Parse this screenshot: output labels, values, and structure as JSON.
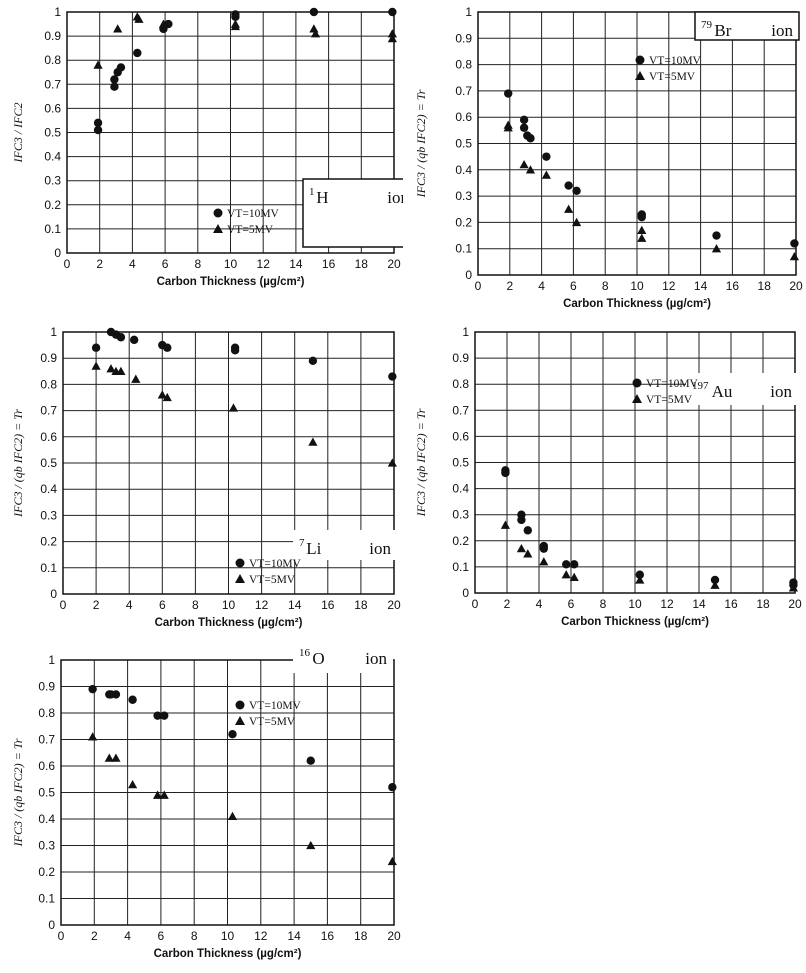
{
  "chart_data": [
    {
      "type": "scatter",
      "ion_mass": "1",
      "ion_symbol": "H",
      "ion_word": "ion",
      "ylabel": "IFC3 / IFC2",
      "xlabel": "Carbon Thickness (µg/cm²)",
      "xlim": [
        0,
        20
      ],
      "ylim": [
        0,
        1
      ],
      "xticks": [
        "0",
        "2",
        "4",
        "6",
        "8",
        "10",
        "12",
        "14",
        "16",
        "18",
        "20"
      ],
      "yticks": [
        "0",
        "0.1",
        "0.2",
        "0.3",
        "0.4",
        "0.5",
        "0.6",
        "0.7",
        "0.8",
        "0.9",
        "1"
      ],
      "grid": true,
      "legend_position": "right-middle",
      "series": [
        {
          "name": "VT=10MV",
          "marker": "circle",
          "x": [
            1.9,
            1.9,
            2.9,
            2.9,
            3.1,
            3.3,
            4.3,
            5.9,
            6.2,
            10.3,
            10.3,
            15.1,
            19.9
          ],
          "y": [
            0.54,
            0.51,
            0.72,
            0.69,
            0.75,
            0.77,
            0.83,
            0.93,
            0.95,
            0.98,
            0.99,
            1.0,
            1.0
          ]
        },
        {
          "name": "VT=5MV",
          "marker": "triangle",
          "x": [
            1.9,
            3.1,
            4.3,
            4.4,
            5.9,
            10.3,
            10.3,
            15.1,
            15.2,
            19.9,
            19.9
          ],
          "y": [
            0.78,
            0.93,
            0.98,
            0.97,
            0.95,
            0.94,
            0.95,
            0.93,
            0.91,
            0.91,
            0.89
          ]
        }
      ]
    },
    {
      "type": "scatter",
      "ion_mass": "79",
      "ion_symbol": "Br",
      "ion_word": "ion",
      "ylabel": "IFC3 / (qb IFC2) = Tr",
      "xlabel": "Carbon Thickness (µg/cm²)",
      "xlim": [
        0,
        20
      ],
      "ylim": [
        0,
        1
      ],
      "xticks": [
        "0",
        "2",
        "4",
        "6",
        "8",
        "10",
        "12",
        "14",
        "16",
        "18",
        "20"
      ],
      "yticks": [
        "0",
        "0.1",
        "0.2",
        "0.3",
        "0.4",
        "0.5",
        "0.6",
        "0.7",
        "0.8",
        "0.9",
        "1"
      ],
      "grid": true,
      "legend_position": "top-right",
      "series": [
        {
          "name": "VT=10MV",
          "marker": "circle",
          "x": [
            1.9,
            2.9,
            2.9,
            3.1,
            3.3,
            4.3,
            5.7,
            6.2,
            10.3,
            10.3,
            15.0,
            19.9
          ],
          "y": [
            0.69,
            0.59,
            0.56,
            0.53,
            0.52,
            0.45,
            0.34,
            0.32,
            0.23,
            0.22,
            0.15,
            0.12
          ]
        },
        {
          "name": "VT=5MV",
          "marker": "triangle",
          "x": [
            1.9,
            1.9,
            2.9,
            3.3,
            4.3,
            5.7,
            6.2,
            10.3,
            10.3,
            15.0,
            19.9
          ],
          "y": [
            0.57,
            0.56,
            0.42,
            0.4,
            0.38,
            0.25,
            0.2,
            0.17,
            0.14,
            0.1,
            0.07
          ]
        }
      ]
    },
    {
      "type": "scatter",
      "ion_mass": "7",
      "ion_symbol": "Li",
      "ion_word": "ion",
      "ylabel": "IFC3 / (qb IFC2) = Tr",
      "xlabel": "Carbon Thickness (µg/cm²)",
      "xlim": [
        0,
        20
      ],
      "ylim": [
        0,
        1
      ],
      "xticks": [
        "0",
        "2",
        "4",
        "6",
        "8",
        "10",
        "12",
        "14",
        "16",
        "18",
        "20"
      ],
      "yticks": [
        "0",
        "0.1",
        "0.2",
        "0.3",
        "0.4",
        "0.5",
        "0.6",
        "0.7",
        "0.8",
        "0.9",
        "1"
      ],
      "grid": true,
      "legend_position": "bottom-right",
      "series": [
        {
          "name": "VT=10MV",
          "marker": "circle",
          "x": [
            2.0,
            2.9,
            3.2,
            3.5,
            4.3,
            6.0,
            6.3,
            10.4,
            10.4,
            15.1,
            19.9
          ],
          "y": [
            0.94,
            1.0,
            0.99,
            0.98,
            0.97,
            0.95,
            0.94,
            0.94,
            0.93,
            0.89,
            0.83
          ]
        },
        {
          "name": "VT=5MV",
          "marker": "triangle",
          "x": [
            2.0,
            2.9,
            3.2,
            3.5,
            4.4,
            6.0,
            6.3,
            10.3,
            15.1,
            19.9
          ],
          "y": [
            0.87,
            0.86,
            0.85,
            0.85,
            0.82,
            0.76,
            0.75,
            0.71,
            0.58,
            0.5
          ]
        }
      ]
    },
    {
      "type": "scatter",
      "ion_mass": "197",
      "ion_symbol": "Au",
      "ion_word": "ion",
      "ylabel": "IFC3 / (qb IFC2) = Tr",
      "xlabel": "Carbon Thickness (µg/cm²)",
      "xlim": [
        0,
        20
      ],
      "ylim": [
        0,
        1
      ],
      "xticks": [
        "0",
        "2",
        "4",
        "6",
        "8",
        "10",
        "12",
        "14",
        "16",
        "18",
        "20"
      ],
      "yticks": [
        "0",
        "0.1",
        "0.2",
        "0.3",
        "0.4",
        "0.5",
        "0.6",
        "0.7",
        "0.8",
        "0.9",
        "1"
      ],
      "grid": true,
      "legend_position": "top-right",
      "series": [
        {
          "name": "VT=10MV",
          "marker": "circle",
          "x": [
            1.9,
            1.9,
            2.9,
            2.9,
            3.3,
            4.3,
            4.3,
            5.7,
            6.2,
            10.3,
            15.0,
            19.9,
            19.9
          ],
          "y": [
            0.47,
            0.46,
            0.3,
            0.28,
            0.24,
            0.18,
            0.17,
            0.11,
            0.11,
            0.07,
            0.05,
            0.04,
            0.03
          ]
        },
        {
          "name": "VT=5MV",
          "marker": "triangle",
          "x": [
            1.9,
            2.9,
            3.3,
            4.3,
            5.7,
            6.2,
            10.3,
            15.0,
            19.9
          ],
          "y": [
            0.26,
            0.17,
            0.15,
            0.12,
            0.07,
            0.06,
            0.05,
            0.03,
            0.02
          ]
        }
      ]
    },
    {
      "type": "scatter",
      "ion_mass": "16",
      "ion_symbol": "O",
      "ion_word": "ion",
      "ylabel": "IFC3 / (qb IFC2) = Tr",
      "xlabel": "Carbon Thickness (µg/cm²)",
      "xlim": [
        0,
        20
      ],
      "ylim": [
        0,
        1
      ],
      "xticks": [
        "0",
        "2",
        "4",
        "6",
        "8",
        "10",
        "12",
        "14",
        "16",
        "18",
        "20"
      ],
      "yticks": [
        "0",
        "0.1",
        "0.2",
        "0.3",
        "0.4",
        "0.5",
        "0.6",
        "0.7",
        "0.8",
        "0.9",
        "1"
      ],
      "grid": true,
      "legend_position": "top-right",
      "series": [
        {
          "name": "VT=10MV",
          "marker": "circle",
          "x": [
            1.9,
            2.9,
            3.0,
            3.3,
            4.3,
            5.8,
            6.2,
            10.3,
            15.0,
            19.9
          ],
          "y": [
            0.89,
            0.87,
            0.87,
            0.87,
            0.85,
            0.79,
            0.79,
            0.72,
            0.62,
            0.52
          ]
        },
        {
          "name": "VT=5MV",
          "marker": "triangle",
          "x": [
            1.9,
            2.9,
            3.3,
            4.3,
            5.8,
            6.2,
            10.3,
            15.0,
            19.9
          ],
          "y": [
            0.71,
            0.63,
            0.63,
            0.53,
            0.49,
            0.49,
            0.41,
            0.3,
            0.24
          ]
        }
      ]
    }
  ]
}
